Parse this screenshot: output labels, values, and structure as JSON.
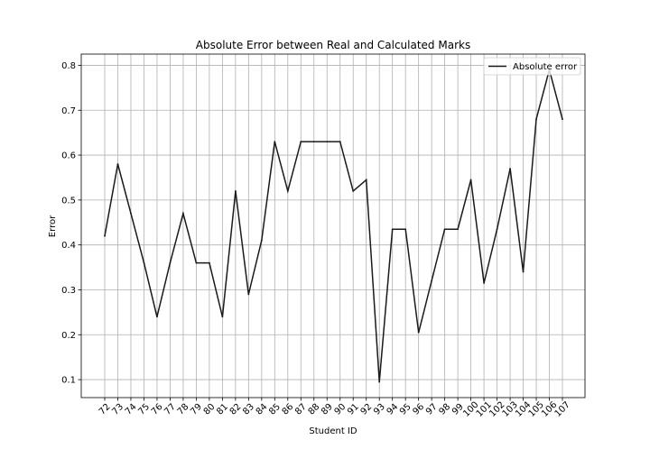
{
  "chart_data": {
    "type": "line",
    "title": "Absolute Error between Real and Calculated Marks",
    "xlabel": "Student ID",
    "ylabel": "Error",
    "ylim": [
      0.06,
      0.825
    ],
    "yticks": [
      0.1,
      0.2,
      0.3,
      0.4,
      0.5,
      0.6,
      0.7,
      0.8
    ],
    "ytick_labels": [
      "0.1",
      "0.2",
      "0.3",
      "0.4",
      "0.5",
      "0.6",
      "0.7",
      "0.8"
    ],
    "grid": true,
    "legend_position": "top-right",
    "categories": [
      "72",
      "73",
      "74",
      "75",
      "76",
      "77",
      "78",
      "79",
      "80",
      "81",
      "82",
      "83",
      "84",
      "85",
      "86",
      "87",
      "88",
      "89",
      "90",
      "91",
      "92",
      "93",
      "94",
      "95",
      "96",
      "97",
      "98",
      "99",
      "100",
      "101",
      "102",
      "103",
      "104",
      "105",
      "106",
      "107"
    ],
    "series": [
      {
        "name": "Absolute error",
        "color": "#1a1a1a",
        "values": [
          0.42,
          0.58,
          0.47,
          0.36,
          0.24,
          0.36,
          0.47,
          0.36,
          0.36,
          0.24,
          0.52,
          0.29,
          0.41,
          0.63,
          0.52,
          0.63,
          0.63,
          0.63,
          0.63,
          0.52,
          0.545,
          0.095,
          0.435,
          0.435,
          0.205,
          0.32,
          0.435,
          0.435,
          0.545,
          0.315,
          0.435,
          0.57,
          0.34,
          0.68,
          0.79,
          0.68
        ]
      }
    ]
  }
}
